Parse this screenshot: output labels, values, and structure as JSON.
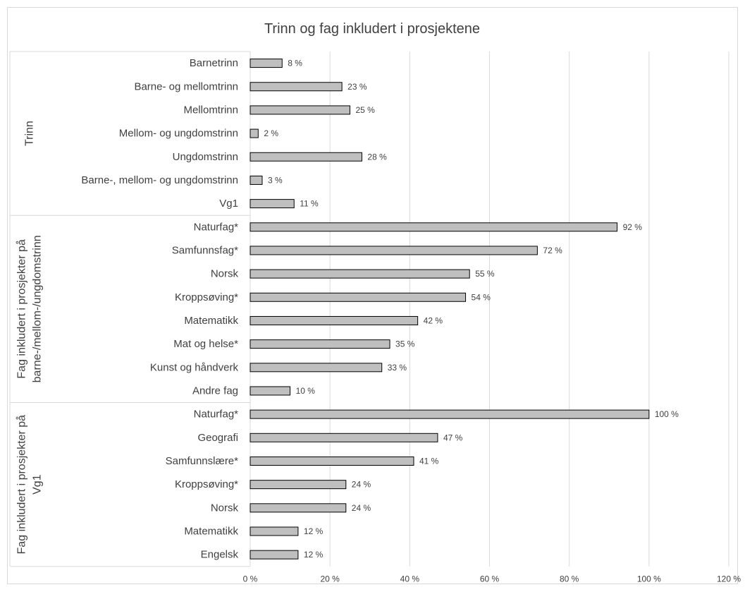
{
  "chart_data": {
    "type": "bar",
    "orientation": "horizontal",
    "title": "Trinn og fag inkludert i prosjektene",
    "xlabel": "",
    "ylabel": "",
    "xlim": [
      0,
      120
    ],
    "x_ticks": [
      "0 %",
      "20 %",
      "40 %",
      "60 %",
      "80 %",
      "100 %",
      "120 %"
    ],
    "grid": true,
    "legend": "none",
    "colors": {
      "bar_fill": "#bfbfbf",
      "bar_stroke": "#000000",
      "grid": "#d9d9d9",
      "text": "#404040"
    },
    "groups": [
      {
        "label": "Trinn",
        "categories": [
          "Barnetrinn",
          "Barne- og mellomtrinn",
          "Mellomtrinn",
          "Mellom- og ungdomstrinn",
          "Ungdomstrinn",
          "Barne-, mellom- og ungdomstrinn",
          "Vg1"
        ],
        "values": [
          8,
          23,
          25,
          2,
          28,
          3,
          11
        ],
        "value_labels": [
          "8 %",
          "23 %",
          "25 %",
          "2 %",
          "28 %",
          "3 %",
          "11 %"
        ]
      },
      {
        "label": [
          "Fag inkludert i prosjekter på",
          "barne-/mellom-/ungdomstrinn"
        ],
        "categories": [
          "Naturfag*",
          "Samfunnsfag*",
          "Norsk",
          "Kroppsøving*",
          "Matematikk",
          "Mat og helse*",
          "Kunst og håndverk",
          "Andre fag"
        ],
        "values": [
          92,
          72,
          55,
          54,
          42,
          35,
          33,
          10
        ],
        "value_labels": [
          "92 %",
          "72 %",
          "55 %",
          "54 %",
          "42 %",
          "35 %",
          "33 %",
          "10 %"
        ]
      },
      {
        "label": [
          "Fag inkludert i prosjekter på",
          "Vg1"
        ],
        "categories": [
          "Naturfag*",
          "Geografi",
          "Samfunnslære*",
          "Kroppsøving*",
          "Norsk",
          "Matematikk",
          "Engelsk"
        ],
        "values": [
          100,
          47,
          41,
          24,
          24,
          12,
          12
        ],
        "value_labels": [
          "100 %",
          "47 %",
          "41 %",
          "24 %",
          "24 %",
          "12 %",
          "12 %"
        ]
      }
    ]
  }
}
